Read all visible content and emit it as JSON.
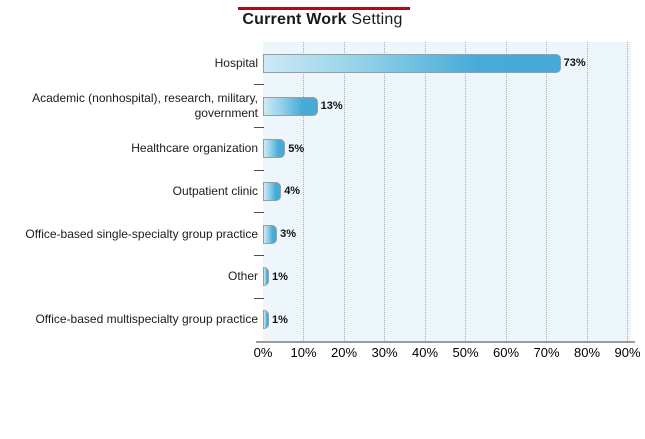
{
  "title": {
    "bold_part": "Current Work",
    "regular_part": " Setting"
  },
  "chart_data": {
    "type": "bar",
    "orientation": "horizontal",
    "title": "Current Work Setting",
    "categories": [
      "Hospital",
      "Academic (nonhospital), research, military, government",
      "Healthcare organization",
      "Outpatient clinic",
      "Office-based single-specialty group practice",
      "Other",
      "Office-based multispecialty group practice"
    ],
    "category_lines": [
      [
        "Hospital"
      ],
      [
        "Academic (nonhospital), research, military,",
        "government"
      ],
      [
        "Healthcare organization"
      ],
      [
        "Outpatient clinic"
      ],
      [
        "Office-based single-specialty group practice"
      ],
      [
        "Other"
      ],
      [
        "Office-based multispecialty group practice"
      ]
    ],
    "values": [
      73,
      13,
      5,
      4,
      3,
      1,
      1
    ],
    "value_labels": [
      "73%",
      "13%",
      "5%",
      "4%",
      "3%",
      "1%",
      "1%"
    ],
    "xlim": [
      0,
      90
    ],
    "x_tick_values": [
      0,
      10,
      20,
      30,
      40,
      50,
      60,
      70,
      80,
      90
    ],
    "x_tick_labels": [
      "0%",
      "10%",
      "20%",
      "30%",
      "40%",
      "50%",
      "60%",
      "70%",
      "80%",
      "90%"
    ],
    "grid": "vertical-dotted",
    "legend": "none"
  },
  "colors": {
    "title_rule_red": "#a90e10",
    "bar_fill_main": "#45aad7",
    "bar_fill_light": "#cdeaf6",
    "bar_border": "#9d9d9d",
    "plot_background": "#edf6fa",
    "gridline": "#9fb2bc",
    "axis_line": "#9b9b9b",
    "text": "#1a1a1a"
  }
}
